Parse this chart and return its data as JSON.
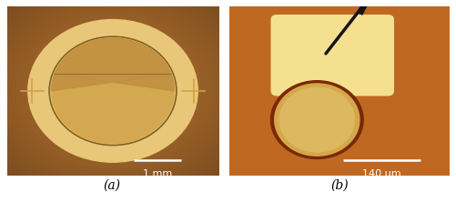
{
  "fig_width": 5.01,
  "fig_height": 2.22,
  "dpi": 100,
  "bg_color": "#ffffff",
  "label_a": "(a)",
  "label_b": "(b)",
  "label_fontsize": 10,
  "img_a": {
    "bg_color": "#c07830",
    "bg_color2": "#a06020",
    "outer_ring_color": "#e8c878",
    "ring_border_color": "#b08840",
    "inner_color": "#d4a850",
    "shadow_color": "#a07828",
    "flat_top_color": "#c09040",
    "scalebar_color": "#ffffff",
    "scalebar_label": "1 mm",
    "cross_color": "#d4a048",
    "vignette": true
  },
  "img_b": {
    "bg_color": "#c06820",
    "pad_color": "#f5e090",
    "pad_edge_color": "#e8d080",
    "circle_bg_color": "#c06820",
    "circle_fill_color": "#d4a848",
    "circle_ring_color": "#7a2808",
    "scalebar_color": "#ffffff",
    "scalebar_label": "140 μm",
    "probe_color": "#151515"
  }
}
